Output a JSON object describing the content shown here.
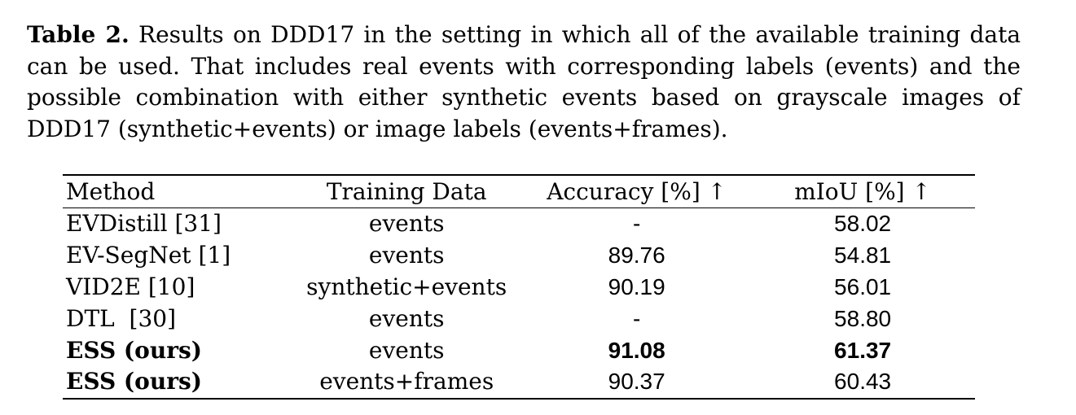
{
  "caption": {
    "label": "Table 2.",
    "text": "Results on DDD17 in the setting in which all of the available training data can be used. That includes real events with corresponding labels (events) and the possible combination with either synthetic events based on grayscale images of DDD17 (synthetic+events) or image labels (events+frames)."
  },
  "table": {
    "headers": {
      "method": "Method",
      "training_data": "Training Data",
      "accuracy": "Accuracy [%] ↑",
      "miou": "mIoU [%] ↑"
    },
    "rows": [
      {
        "method": "EVDistill [31]",
        "training_data": "events",
        "accuracy": "-",
        "miou": "58.02"
      },
      {
        "method": "EV-SegNet [1]",
        "training_data": "events",
        "accuracy": "89.76",
        "miou": "54.81"
      },
      {
        "method": "VID2E [10]",
        "training_data": "synthetic+events",
        "accuracy": "90.19",
        "miou": "56.01"
      },
      {
        "method": "DTL  [30]",
        "training_data": "events",
        "accuracy": "-",
        "miou": "58.80"
      },
      {
        "method": "ESS (ours)",
        "training_data": "events",
        "accuracy": "91.08",
        "miou": "61.37"
      },
      {
        "method": "ESS (ours)",
        "training_data": "events+frames",
        "accuracy": "90.37",
        "miou": "60.43"
      }
    ]
  }
}
